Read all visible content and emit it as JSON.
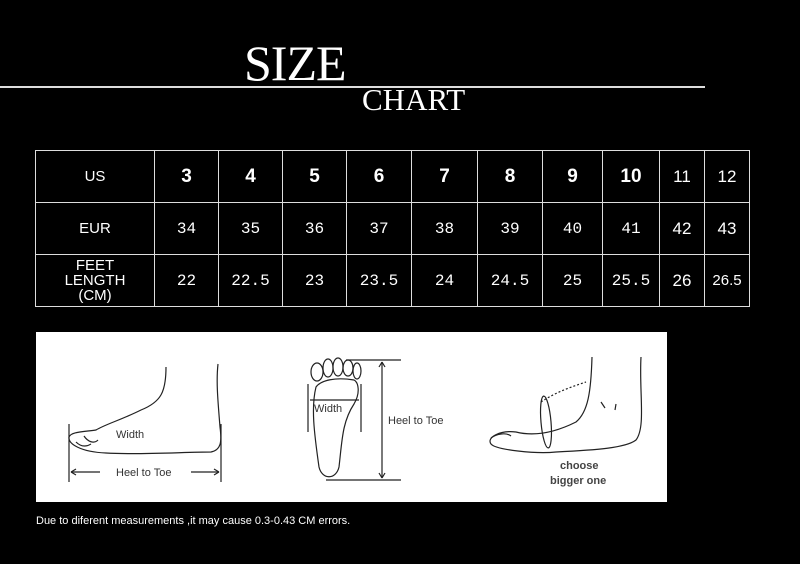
{
  "title": {
    "line1": "SIZE",
    "line2": "CHART"
  },
  "table": {
    "rows": [
      {
        "label": "US",
        "values": [
          "3",
          "4",
          "5",
          "6",
          "7",
          "8",
          "9",
          "10",
          "11",
          "12"
        ]
      },
      {
        "label": "EUR",
        "values": [
          "34",
          "35",
          "36",
          "37",
          "38",
          "39",
          "40",
          "41",
          "42",
          "43"
        ]
      },
      {
        "label_lines": [
          "FEET",
          "LENGTH",
          "(CM)"
        ],
        "values": [
          "22",
          "22.5",
          "23",
          "23.5",
          "24",
          "24.5",
          "25",
          "25.5",
          "26",
          "26.5"
        ]
      }
    ]
  },
  "diagram": {
    "side_width": "Width",
    "side_length": "Heel to Toe",
    "sole_width": "Width",
    "sole_length": "Heel to Toe",
    "tip_line1": "choose",
    "tip_line2": "bigger one"
  },
  "note": "Due to diferent measurements ,it may cause 0.3-0.43 CM errors."
}
